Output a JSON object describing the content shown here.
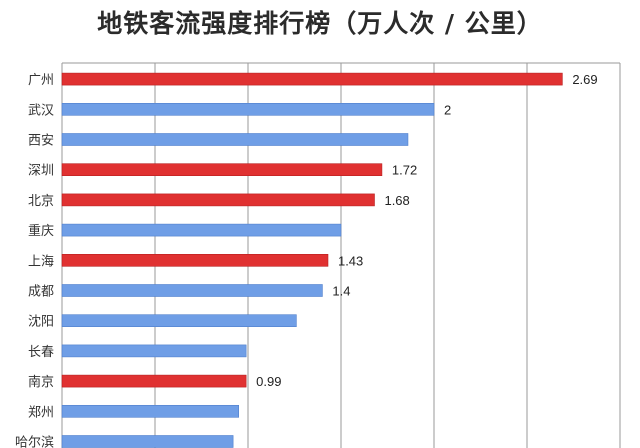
{
  "chart_data": {
    "type": "bar",
    "orientation": "horizontal",
    "title": "地铁客流强度排行榜（万人次 / 公里）",
    "categories": [
      "广州",
      "武汉",
      "西安",
      "深圳",
      "北京",
      "重庆",
      "上海",
      "成都",
      "沈阳",
      "长春",
      "南京",
      "郑州",
      "哈尔滨"
    ],
    "values": [
      2.69,
      2.0,
      1.86,
      1.72,
      1.68,
      1.5,
      1.43,
      1.4,
      1.26,
      0.99,
      0.99,
      0.95,
      0.92
    ],
    "value_labels": [
      "2.69",
      "2",
      "",
      "1.72",
      "1.68",
      "",
      "1.43",
      "1.4",
      "",
      "",
      "0.99",
      "",
      ""
    ],
    "bar_colors": [
      "#e03131",
      "#6f9ee6",
      "#6f9ee6",
      "#e03131",
      "#e03131",
      "#6f9ee6",
      "#e03131",
      "#6f9ee6",
      "#6f9ee6",
      "#6f9ee6",
      "#e03131",
      "#6f9ee6",
      "#6f9ee6"
    ],
    "xlim": [
      0,
      3
    ],
    "grid": true,
    "legend": "none"
  },
  "colors": {
    "highlight": "#e03131",
    "default": "#6f9ee6",
    "grid": "#9a9a9a"
  }
}
